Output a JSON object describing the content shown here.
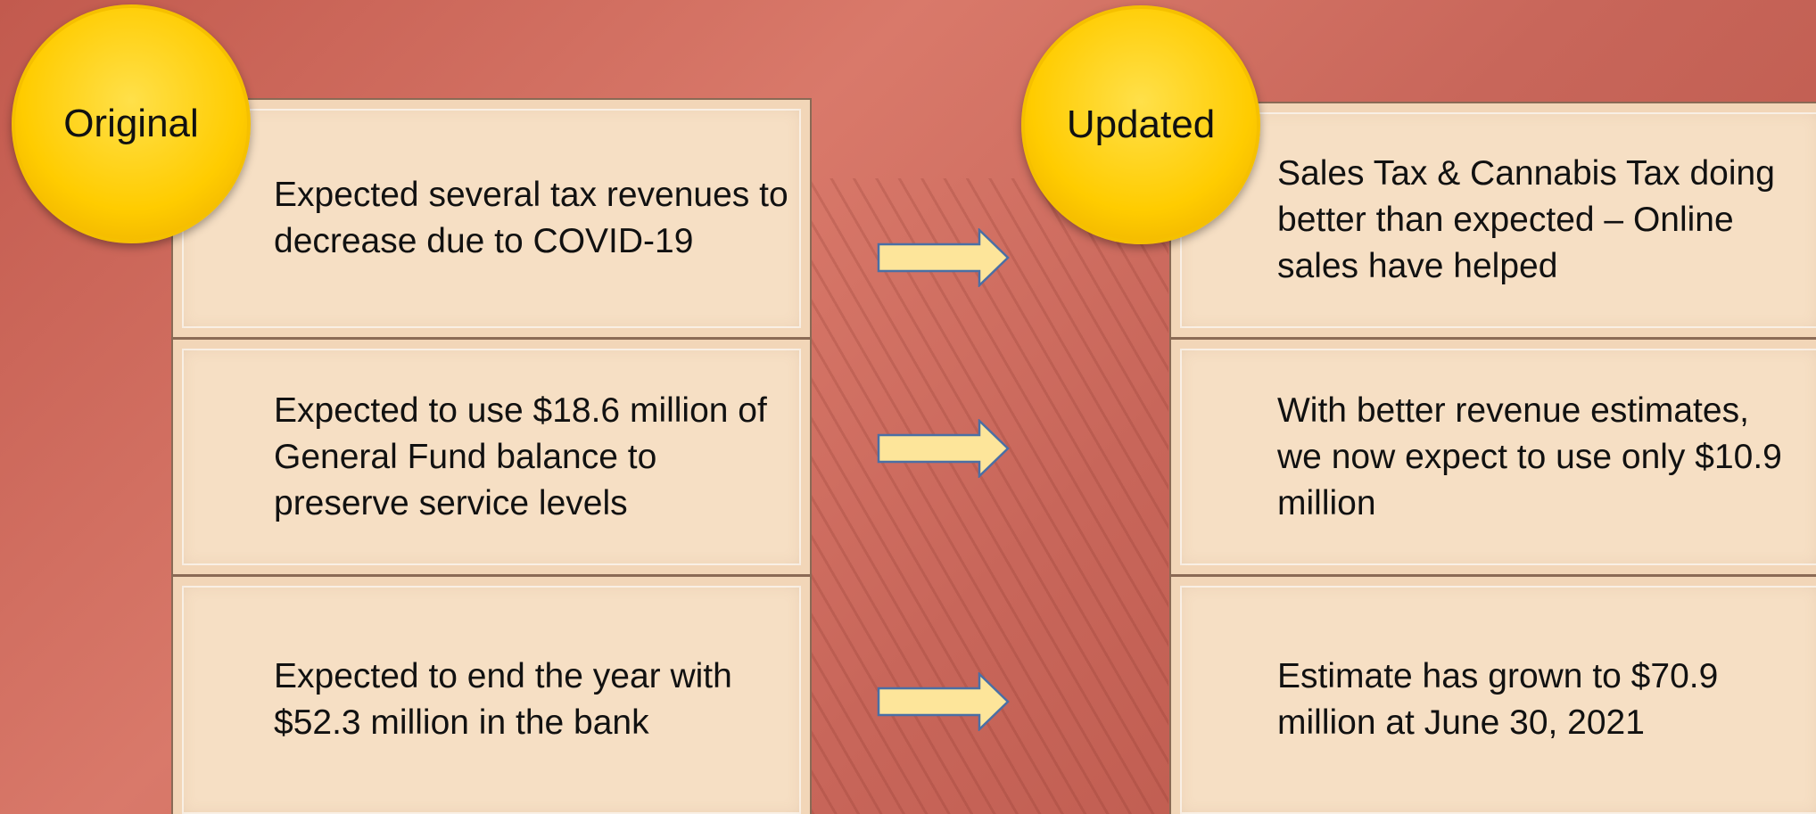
{
  "labels": {
    "original": "Original",
    "updated": "Updated"
  },
  "rows": [
    {
      "original": "Expected several tax revenues to decrease due to COVID-19",
      "updated": "Sales Tax & Cannabis Tax doing better than expected – Online sales have helped"
    },
    {
      "original": "Expected to use $18.6 million of General Fund balance to preserve service levels",
      "updated": "With better revenue estimates, we now expect to use only $10.9 million"
    },
    {
      "original": "Expected to end the year with $52.3 million in the bank",
      "updated": "Estimate has grown to $70.9 million at June 30, 2021"
    }
  ]
}
